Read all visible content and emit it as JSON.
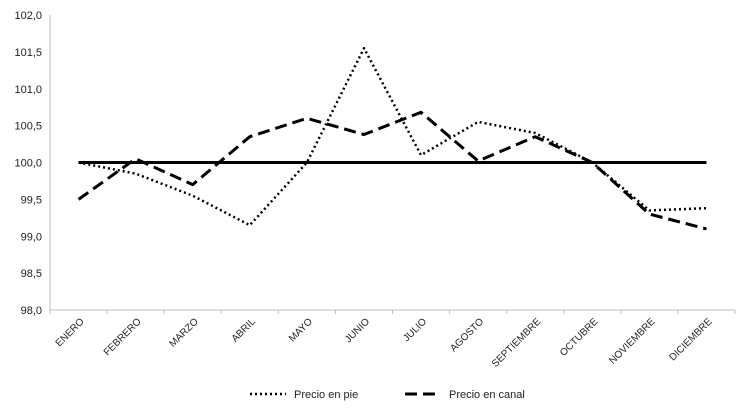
{
  "chart_data": {
    "type": "line",
    "categories": [
      "ENERO",
      "FEBRERO",
      "MARZO",
      "ABRIL",
      "MAYO",
      "JUNIO",
      "JULIO",
      "AGOSTO",
      "SEPTIEMBRE",
      "OCTUBRE",
      "NOVIEMBRE",
      "DICIEMBRE"
    ],
    "series": [
      {
        "name": "Precio en pie",
        "style": "dotted",
        "color": "#000000",
        "values": [
          100.0,
          99.85,
          99.55,
          99.15,
          100.0,
          101.55,
          100.1,
          100.55,
          100.4,
          100.0,
          99.35,
          99.38
        ]
      },
      {
        "name": "Precio en canal",
        "style": "dashed",
        "color": "#000000",
        "values": [
          99.5,
          100.05,
          99.7,
          100.35,
          100.6,
          100.38,
          100.68,
          100.02,
          100.35,
          100.0,
          99.3,
          99.1
        ]
      }
    ],
    "reference_line": {
      "value": 100.0,
      "style": "solid",
      "color": "#000000"
    },
    "ylim": [
      98.0,
      102.0
    ],
    "yticks": [
      "98,0",
      "98,5",
      "99,0",
      "99,5",
      "100,0",
      "100,5",
      "101,0",
      "101,5",
      "102,0"
    ],
    "grid": false,
    "legend_position": "bottom-center",
    "title": "",
    "xlabel": "",
    "ylabel": ""
  }
}
